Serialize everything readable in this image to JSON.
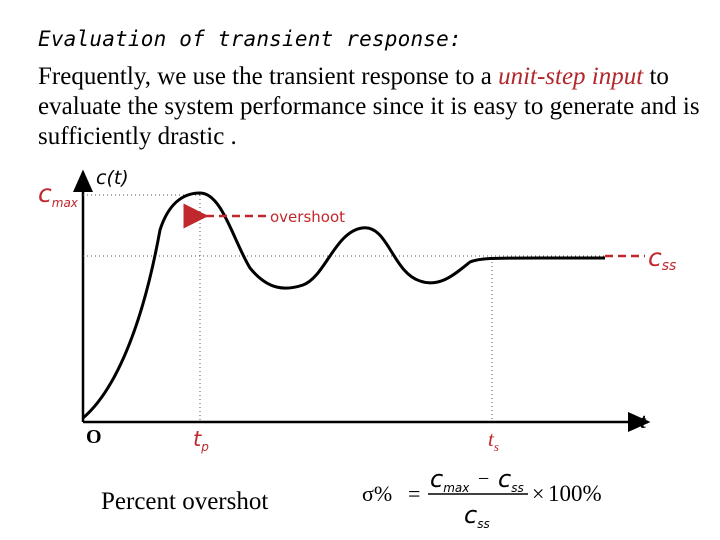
{
  "heading": "Evaluation of transient response:",
  "paragraph": {
    "before": "Frequently, we use the transient response to a ",
    "highlight": "unit-step input",
    "after": " to evaluate the system performance since it is easy to generate and is sufficiently drastic ."
  },
  "diagram": {
    "y_axis_label": "c(t)",
    "x_axis_label": "t",
    "origin_label": "O",
    "cmax_label": "c",
    "cmax_sub": "max",
    "css_label": "c",
    "css_sub": "ss",
    "overshoot_label": "overshoot",
    "tp_label": "t",
    "tp_sub": "p",
    "ts_label": "t",
    "ts_sub": "s",
    "colors": {
      "annotation": "#c0282c",
      "curve": "#000000",
      "guide": "#555555"
    }
  },
  "formula": {
    "caption": "Percent overshot",
    "symbol": "σ%",
    "equals": "=",
    "num_a": "c",
    "num_a_sub": "max",
    "minus": "−",
    "num_b": "c",
    "num_b_sub": "ss",
    "den": "c",
    "den_sub": "ss",
    "times": "×",
    "percent": "100%"
  }
}
